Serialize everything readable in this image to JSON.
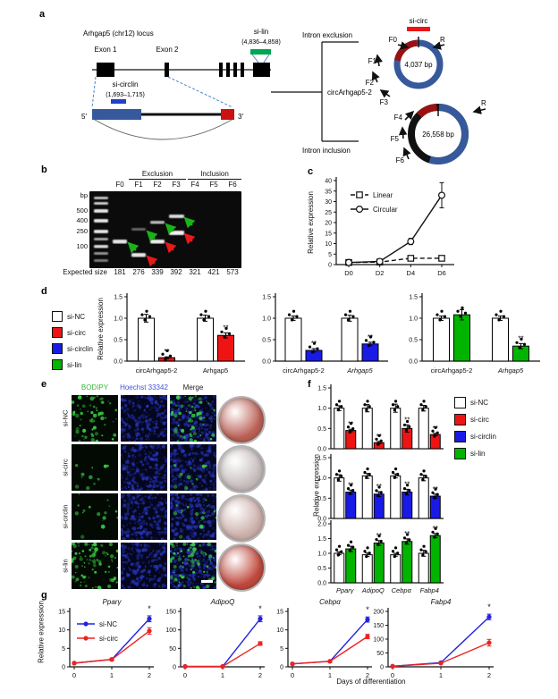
{
  "panel_a": {
    "label": "a",
    "locus_title": "Arhgap5 (chr12) locus",
    "exon1_label": "Exon 1",
    "exon2_label": "Exon 2",
    "si_lin_label": "si-lin",
    "si_lin_range": "(4,836–4,858)",
    "si_circlin_label": "si-circlin",
    "si_circlin_range": "(1,693–1,715)",
    "five_prime": "5′",
    "three_prime": "3′",
    "intron_exclusion": "Intron exclusion",
    "circ_name": "circArhgap5-2",
    "intron_inclusion": "Intron inclusion",
    "si_circ_label": "si-circ",
    "small_circle_size": "4,037 bp",
    "large_circle_size": "26,558 bp",
    "primers": {
      "f0": "F0",
      "f1": "F1",
      "f2": "F2",
      "f3": "F3",
      "f4": "F4",
      "f5": "F5",
      "f6": "F6",
      "r": "R"
    },
    "colors": {
      "exon_blue": "#36599c",
      "junction_red": "#9b1111",
      "si_circ_red": "#ee1414",
      "si_lin_green": "#00a651",
      "si_circlin_blue": "#2040c8"
    }
  },
  "panel_b": {
    "label": "b",
    "bp_label": "bp",
    "headers": [
      "Exclusion",
      "Inclusion"
    ],
    "lanes": [
      "F0",
      "F1",
      "F2",
      "F3",
      "F4",
      "F5",
      "F6"
    ],
    "ladder_marks": [
      "500",
      "400",
      "250",
      "100"
    ],
    "expected_size_label": "Expected size",
    "expected_sizes": [
      "181",
      "276",
      "339",
      "392",
      "321",
      "421",
      "573"
    ]
  },
  "panel_c": {
    "label": "c"
  },
  "panel_d": {
    "label": "d",
    "legend": [
      {
        "label": "si-NC",
        "color": "#ffffff"
      },
      {
        "label": "si-circ",
        "color": "#ee1414"
      },
      {
        "label": "si-circlin",
        "color": "#1a1ae6"
      },
      {
        "label": "si-lin",
        "color": "#00b400"
      }
    ]
  },
  "panel_e": {
    "label": "e",
    "columns": [
      {
        "label": "BODIPY",
        "color": "#3cb43c"
      },
      {
        "label": "Hoechst 33342",
        "color": "#4152dc"
      },
      {
        "label": "Merge",
        "color": "#222222"
      }
    ],
    "rows": [
      "si-NC",
      "si-circ",
      "si-circlin",
      "si-lin"
    ],
    "wells": [
      {
        "row": "si-NC",
        "color": "#bb6157"
      },
      {
        "row": "si-circ",
        "color": "#c6bcbc"
      },
      {
        "row": "si-circlin",
        "color": "#ccb0ab"
      },
      {
        "row": "si-lin",
        "color": "#bf4a3e"
      }
    ]
  },
  "panel_f": {
    "label": "f",
    "ylabel": "Relative expression",
    "legend": [
      {
        "label": "si-NC",
        "color": "#ffffff"
      },
      {
        "label": "si-circ",
        "color": "#ee1414"
      },
      {
        "label": "si-circlin",
        "color": "#1a1ae6"
      },
      {
        "label": "si-lin",
        "color": "#00b400"
      }
    ]
  },
  "panel_g": {
    "label": "g",
    "ylabel": "Relative expression",
    "xlabel": "Days of differentiation"
  },
  "chart_data": [
    {
      "id": "c",
      "panel": "c",
      "type": "line",
      "x_categories": [
        "D0",
        "D2",
        "D4",
        "D6"
      ],
      "ylabel": "Relative expression",
      "ylim": [
        0,
        40
      ],
      "yticks": [
        0,
        5,
        10,
        15,
        20,
        25,
        30,
        35,
        40
      ],
      "show_legend": true,
      "legend_position": "top-left",
      "series": [
        {
          "name": "Linear",
          "color": "#111111",
          "line": "dashed",
          "marker": "open-square",
          "values": [
            1,
            1.2,
            3,
            3
          ],
          "errors": [
            0.3,
            0.3,
            0.6,
            0.6
          ]
        },
        {
          "name": "Circular",
          "color": "#111111",
          "line": "solid",
          "marker": "open-circle",
          "values": [
            1,
            1.5,
            11,
            33
          ],
          "errors": [
            0.3,
            0.4,
            1.5,
            6
          ]
        }
      ]
    },
    {
      "id": "d1",
      "panel": "d",
      "type": "bar",
      "categories": [
        "circArhgap5-2",
        "Arhgap5"
      ],
      "category_italics": [
        false,
        false
      ],
      "ylabel": "Relative expression",
      "ylim": [
        0,
        1.5
      ],
      "yticks": [
        0,
        0.5,
        1,
        1.5
      ],
      "series": [
        {
          "name": "si-NC",
          "color": "#ffffff",
          "values": [
            1.0,
            1.0
          ],
          "errors": [
            0.09,
            0.07
          ],
          "sig": [
            "",
            ""
          ]
        },
        {
          "name": "si-circ",
          "color": "#ee1414",
          "values": [
            0.08,
            0.6
          ],
          "errors": [
            0.02,
            0.06
          ],
          "sig": [
            "**",
            "**"
          ]
        }
      ]
    },
    {
      "id": "d2",
      "panel": "d",
      "type": "bar",
      "categories": [
        "circArhgap5-2",
        "Arhgap5"
      ],
      "category_italics": [
        false,
        true
      ],
      "ylim": [
        0,
        1.5
      ],
      "yticks": [
        0,
        0.5,
        1,
        1.5
      ],
      "series": [
        {
          "name": "si-NC",
          "color": "#ffffff",
          "values": [
            1.0,
            1.0
          ],
          "errors": [
            0.05,
            0.07
          ],
          "sig": [
            "",
            ""
          ]
        },
        {
          "name": "si-circlin",
          "color": "#1a1ae6",
          "values": [
            0.25,
            0.4
          ],
          "errors": [
            0.04,
            0.04
          ],
          "sig": [
            "**",
            "**"
          ]
        }
      ]
    },
    {
      "id": "d3",
      "panel": "d",
      "type": "bar",
      "categories": [
        "circArhgap5-2",
        "Arhgap5"
      ],
      "category_italics": [
        false,
        true
      ],
      "ylim": [
        0,
        1.5
      ],
      "yticks": [
        0,
        0.5,
        1,
        1.5
      ],
      "series": [
        {
          "name": "si-NC",
          "color": "#ffffff",
          "values": [
            1.0,
            1.0
          ],
          "errors": [
            0.05,
            0.05
          ],
          "sig": [
            "",
            ""
          ]
        },
        {
          "name": "si-lin",
          "color": "#00b400",
          "values": [
            1.08,
            0.35
          ],
          "errors": [
            0.12,
            0.06
          ],
          "sig": [
            "",
            "**"
          ]
        }
      ]
    },
    {
      "id": "f1",
      "panel": "f",
      "type": "bar",
      "categories": [
        "Pparγ",
        "AdipoQ",
        "Cebpα",
        "Fabp4"
      ],
      "category_italics": [
        true,
        true,
        true,
        true
      ],
      "show_categories": false,
      "ylim": [
        0,
        1.5
      ],
      "yticks": [
        0,
        0.5,
        1,
        1.5
      ],
      "series": [
        {
          "name": "si-NC",
          "color": "#ffffff",
          "values": [
            1,
            1,
            1,
            1
          ],
          "errors": [
            0.06,
            0.09,
            0.1,
            0.07
          ],
          "sig": [
            "",
            "",
            "",
            ""
          ]
        },
        {
          "name": "si-circ",
          "color": "#ee1414",
          "values": [
            0.45,
            0.15,
            0.5,
            0.35
          ],
          "errors": [
            0.03,
            0.03,
            0.09,
            0.03
          ],
          "sig": [
            "**",
            "**",
            "**",
            "**"
          ]
        }
      ]
    },
    {
      "id": "f2",
      "panel": "f",
      "type": "bar",
      "categories": [
        "Pparγ",
        "AdipoQ",
        "Cebpα",
        "Fabp4"
      ],
      "category_italics": [
        true,
        true,
        true,
        true
      ],
      "show_categories": false,
      "ylim": [
        0,
        1.5
      ],
      "yticks": [
        0,
        0.5,
        1,
        1.5
      ],
      "series": [
        {
          "name": "si-NC",
          "color": "#ffffff",
          "values": [
            1,
            1.05,
            1.05,
            1
          ],
          "errors": [
            0.08,
            0.06,
            0.05,
            0.07
          ],
          "sig": [
            "",
            "",
            "",
            ""
          ]
        },
        {
          "name": "si-circlin",
          "color": "#1a1ae6",
          "values": [
            0.65,
            0.6,
            0.65,
            0.55
          ],
          "errors": [
            0.05,
            0.06,
            0.07,
            0.05
          ],
          "sig": [
            "**",
            "**",
            "**",
            "**"
          ]
        }
      ]
    },
    {
      "id": "f3",
      "panel": "f",
      "type": "bar",
      "categories": [
        "Pparγ",
        "AdipoQ",
        "Cebpα",
        "Fabp4"
      ],
      "category_italics": [
        true,
        true,
        true,
        true
      ],
      "show_categories": true,
      "ylim": [
        0,
        2
      ],
      "yticks": [
        0,
        0.5,
        1,
        1.5,
        2
      ],
      "series": [
        {
          "name": "si-NC",
          "color": "#ffffff",
          "values": [
            1,
            0.95,
            0.95,
            1
          ],
          "errors": [
            0.05,
            0.06,
            0.05,
            0.1
          ],
          "sig": [
            "",
            "",
            "",
            ""
          ]
        },
        {
          "name": "si-lin",
          "color": "#00b400",
          "values": [
            1.15,
            1.35,
            1.4,
            1.6
          ],
          "errors": [
            0.09,
            0.08,
            0.09,
            0.07
          ],
          "sig": [
            "",
            "**",
            "**",
            "**"
          ]
        }
      ]
    },
    {
      "id": "g1",
      "panel": "g",
      "type": "line",
      "title": "Pparγ",
      "title_italic": true,
      "x_categories": [
        "0",
        "1",
        "2"
      ],
      "ylim": [
        0,
        15
      ],
      "yticks": [
        0,
        5,
        10,
        15
      ],
      "sig": "*",
      "show_legend": true,
      "series": [
        {
          "name": "si-NC",
          "color": "#2323dd",
          "line": "solid",
          "marker": "dot",
          "values": [
            1,
            2,
            13
          ],
          "errors": [
            0.2,
            0.3,
            0.8
          ]
        },
        {
          "name": "si-circ",
          "color": "#ee2222",
          "line": "solid",
          "marker": "dot",
          "values": [
            1,
            2,
            9.7
          ],
          "errors": [
            0.2,
            0.3,
            0.9
          ]
        }
      ]
    },
    {
      "id": "g2",
      "panel": "g",
      "type": "line",
      "title": "AdipoQ",
      "title_italic": true,
      "x_categories": [
        "0",
        "1",
        "2"
      ],
      "ylim": [
        0,
        150
      ],
      "yticks": [
        0,
        50,
        100,
        150
      ],
      "sig": "*",
      "show_legend": false,
      "series": [
        {
          "name": "si-NC",
          "color": "#2323dd",
          "line": "solid",
          "marker": "dot",
          "values": [
            1,
            1,
            130
          ],
          "errors": [
            0.3,
            0.3,
            8
          ]
        },
        {
          "name": "si-circ",
          "color": "#ee2222",
          "line": "solid",
          "marker": "dot",
          "values": [
            1,
            1,
            63
          ],
          "errors": [
            0.3,
            0.3,
            5
          ]
        }
      ]
    },
    {
      "id": "g3",
      "panel": "g",
      "type": "line",
      "title": "Cebpα",
      "title_italic": true,
      "x_categories": [
        "0",
        "1",
        "2"
      ],
      "ylim": [
        0,
        15
      ],
      "yticks": [
        0,
        5,
        10,
        15
      ],
      "sig": "*",
      "show_legend": false,
      "series": [
        {
          "name": "si-NC",
          "color": "#2323dd",
          "line": "solid",
          "marker": "dot",
          "values": [
            0.8,
            1.5,
            12.8
          ],
          "errors": [
            0.2,
            0.2,
            0.7
          ]
        },
        {
          "name": "si-circ",
          "color": "#ee2222",
          "line": "solid",
          "marker": "dot",
          "values": [
            0.8,
            1.5,
            8.2
          ],
          "errors": [
            0.2,
            0.2,
            0.6
          ]
        }
      ]
    },
    {
      "id": "g4",
      "panel": "g",
      "type": "line",
      "title": "Fabp4",
      "title_italic": true,
      "x_categories": [
        "0",
        "1",
        "2"
      ],
      "ylim": [
        0,
        200
      ],
      "yticks": [
        0,
        50,
        100,
        150,
        200
      ],
      "sig": "*",
      "show_legend": false,
      "series": [
        {
          "name": "si-NC",
          "color": "#2323dd",
          "line": "solid",
          "marker": "dot",
          "values": [
            2,
            15,
            180
          ],
          "errors": [
            0.5,
            2,
            10
          ],
          "sig_last": "*"
        },
        {
          "name": "si-circ",
          "color": "#ee2222",
          "line": "solid",
          "marker": "dot",
          "values": [
            2,
            13,
            87
          ],
          "errors": [
            0.5,
            2,
            12
          ]
        }
      ]
    }
  ]
}
